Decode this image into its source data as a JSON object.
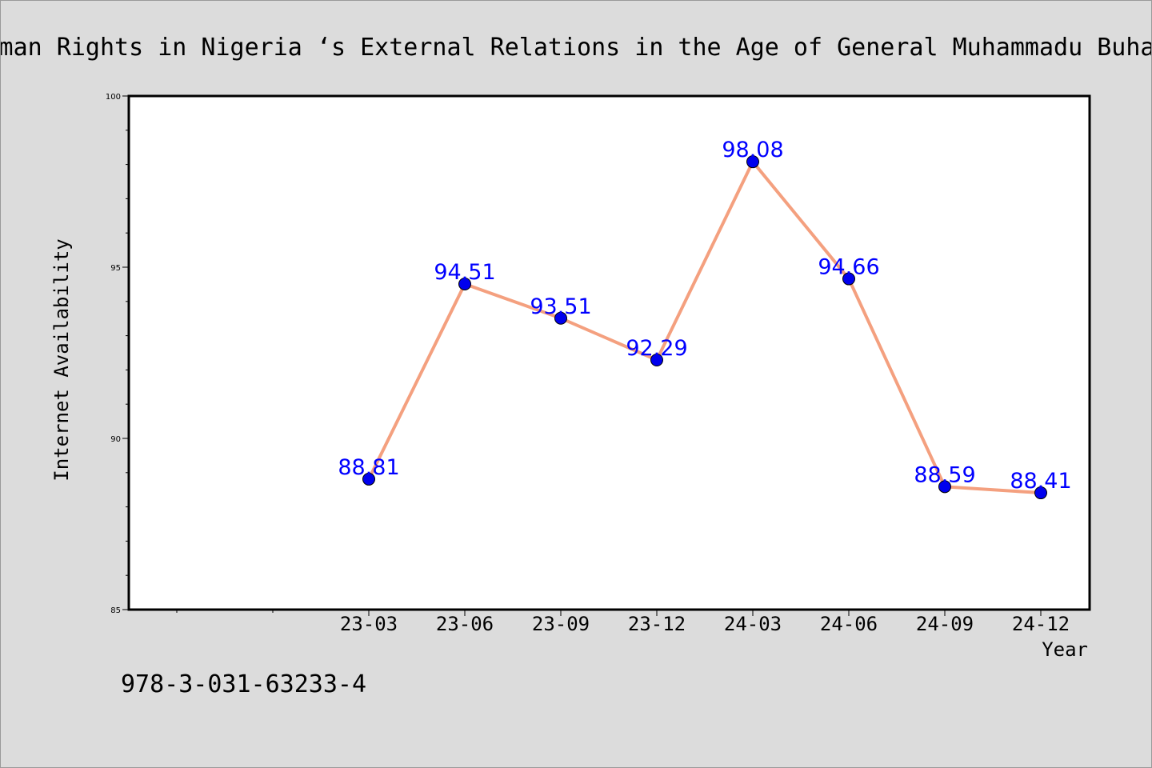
{
  "chart_data": {
    "type": "line",
    "title": "Human Rights in Nigeria ‘s External Relations in the Age of General Muhammadu Buhari",
    "xlabel": "Year",
    "ylabel": "Internet Availability",
    "categories": [
      "23-03",
      "23-06",
      "23-09",
      "23-12",
      "24-03",
      "24-06",
      "24-09",
      "24-12"
    ],
    "series": [
      {
        "values": [
          88.81,
          94.51,
          93.51,
          92.29,
          98.08,
          94.66,
          88.59,
          88.41
        ],
        "labels": [
          "88.81",
          "94.51",
          "93.51",
          "92.29",
          "98.08",
          "94.66",
          "88.59",
          "88.41"
        ]
      }
    ],
    "ylim": [
      85,
      100
    ],
    "yticks": [
      85,
      90,
      95,
      100
    ],
    "ytick_labels": [
      "85",
      "90",
      "95",
      "100"
    ],
    "grid": false,
    "legend": "none",
    "colors": {
      "line": "#f4a07f",
      "marker": "#0000ee",
      "label": "#0000ff",
      "background": "#dcdcdc",
      "plot_area": "#ffffff"
    }
  },
  "footer": {
    "isbn": "978-3-031-63233-4"
  }
}
